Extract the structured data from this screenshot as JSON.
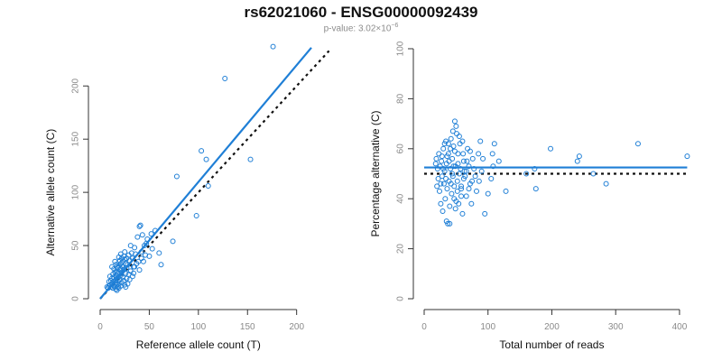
{
  "header": {
    "title": "rs62021060 - ENSG00000092439",
    "subtitle_prefix": "p-value: 3.02×10",
    "subtitle_exponent": "−6"
  },
  "colors": {
    "points": "#1f7fd6",
    "fit_line": "#1f7fd6",
    "reference_line": "#111111",
    "axis": "#333333",
    "tick_text": "#8a8a8a"
  },
  "chart_data": [
    {
      "type": "scatter",
      "title": "",
      "xlabel": "Reference allele count (T)",
      "ylabel": "Alternative allele count (C)",
      "xlim": [
        0,
        215
      ],
      "ylim": [
        0,
        235
      ],
      "xticks": [
        0,
        50,
        100,
        150,
        200
      ],
      "yticks": [
        0,
        50,
        100,
        150,
        200
      ],
      "grid": false,
      "legend": "none",
      "fit_line": {
        "x": [
          0,
          215
        ],
        "y": [
          0,
          236
        ],
        "style": "solid"
      },
      "reference_line": {
        "x": [
          0,
          233
        ],
        "y": [
          0,
          233
        ],
        "style": "dotted"
      },
      "points": [
        [
          176,
          237
        ],
        [
          127,
          207
        ],
        [
          103,
          139
        ],
        [
          108,
          131
        ],
        [
          153,
          131
        ],
        [
          110,
          106
        ],
        [
          78,
          115
        ],
        [
          98,
          78
        ],
        [
          74,
          54
        ],
        [
          62,
          32
        ],
        [
          60,
          43
        ],
        [
          56,
          64
        ],
        [
          52,
          61
        ],
        [
          50,
          40
        ],
        [
          45,
          50
        ],
        [
          43,
          60
        ],
        [
          42,
          38
        ],
        [
          41,
          69
        ],
        [
          40,
          68
        ],
        [
          38,
          58
        ],
        [
          36,
          42
        ],
        [
          35,
          48
        ],
        [
          34,
          30
        ],
        [
          33,
          38
        ],
        [
          32,
          43
        ],
        [
          31,
          50
        ],
        [
          30,
          36
        ],
        [
          29,
          41
        ],
        [
          28,
          32
        ],
        [
          27,
          29
        ],
        [
          27,
          38
        ],
        [
          26,
          24
        ],
        [
          26,
          33
        ],
        [
          25,
          37
        ],
        [
          25,
          44
        ],
        [
          24,
          27
        ],
        [
          24,
          40
        ],
        [
          23,
          20
        ],
        [
          23,
          30
        ],
        [
          23,
          35
        ],
        [
          22,
          15
        ],
        [
          22,
          25
        ],
        [
          22,
          38
        ],
        [
          21,
          12
        ],
        [
          21,
          22
        ],
        [
          21,
          28
        ],
        [
          21,
          33
        ],
        [
          20,
          18
        ],
        [
          20,
          27
        ],
        [
          20,
          36
        ],
        [
          19,
          10
        ],
        [
          19,
          14
        ],
        [
          19,
          21
        ],
        [
          19,
          31
        ],
        [
          18,
          11
        ],
        [
          18,
          17
        ],
        [
          18,
          24
        ],
        [
          18,
          29
        ],
        [
          17,
          8
        ],
        [
          17,
          13
        ],
        [
          17,
          19
        ],
        [
          17,
          26
        ],
        [
          16,
          9
        ],
        [
          16,
          15
        ],
        [
          16,
          22
        ],
        [
          16,
          32
        ],
        [
          15,
          11
        ],
        [
          15,
          17
        ],
        [
          15,
          25
        ],
        [
          15,
          35
        ],
        [
          14,
          12
        ],
        [
          14,
          20
        ],
        [
          14,
          28
        ],
        [
          13,
          10
        ],
        [
          13,
          16
        ],
        [
          13,
          23
        ],
        [
          12,
          14
        ],
        [
          12,
          19
        ],
        [
          12,
          30
        ],
        [
          11,
          11
        ],
        [
          11,
          17
        ],
        [
          10,
          13
        ],
        [
          10,
          21
        ],
        [
          9,
          12
        ],
        [
          9,
          16
        ],
        [
          8,
          10
        ],
        [
          7,
          11
        ],
        [
          26,
          11
        ],
        [
          28,
          14
        ],
        [
          30,
          18
        ],
        [
          31,
          26
        ],
        [
          33,
          21
        ],
        [
          34,
          24
        ],
        [
          35,
          30
        ],
        [
          37,
          33
        ],
        [
          39,
          35
        ],
        [
          40,
          27
        ],
        [
          42,
          44
        ],
        [
          44,
          35
        ],
        [
          46,
          41
        ],
        [
          47,
          52
        ],
        [
          48,
          56
        ],
        [
          53,
          47
        ],
        [
          24,
          17
        ],
        [
          22,
          31
        ],
        [
          27,
          19
        ],
        [
          29,
          23
        ],
        [
          19,
          39
        ],
        [
          21,
          42
        ],
        [
          17,
          30
        ],
        [
          25,
          13
        ]
      ]
    },
    {
      "type": "scatter",
      "title": "",
      "xlabel": "Total number of reads",
      "ylabel": "Percentage alternative (C)",
      "xlim": [
        0,
        410
      ],
      "ylim": [
        0,
        100
      ],
      "xticks": [
        0,
        100,
        200,
        300,
        400
      ],
      "yticks": [
        0,
        20,
        40,
        60,
        80,
        100
      ],
      "grid": false,
      "legend": "none",
      "fit_line": {
        "x": [
          0,
          412
        ],
        "y": [
          52.5,
          52.5
        ],
        "style": "solid"
      },
      "reference_line": {
        "x": [
          0,
          412
        ],
        "y": [
          50,
          50
        ],
        "style": "dotted"
      },
      "points": [
        [
          412,
          57
        ],
        [
          335,
          62
        ],
        [
          285,
          46
        ],
        [
          265,
          50
        ],
        [
          243,
          57
        ],
        [
          240,
          55
        ],
        [
          198,
          60
        ],
        [
          175,
          44
        ],
        [
          173,
          52
        ],
        [
          160,
          50
        ],
        [
          128,
          43
        ],
        [
          110,
          62
        ],
        [
          107,
          58
        ],
        [
          105,
          48
        ],
        [
          100,
          42
        ],
        [
          95,
          34
        ],
        [
          108,
          53
        ],
        [
          117,
          55
        ],
        [
          90,
          51
        ],
        [
          88,
          63
        ],
        [
          85,
          58
        ],
        [
          82,
          43
        ],
        [
          80,
          49
        ],
        [
          78,
          52
        ],
        [
          76,
          56
        ],
        [
          74,
          38
        ],
        [
          72,
          46
        ],
        [
          70,
          53
        ],
        [
          68,
          60
        ],
        [
          66,
          41
        ],
        [
          64,
          49
        ],
        [
          62,
          55
        ],
        [
          60,
          34
        ],
        [
          58,
          44
        ],
        [
          56,
          62
        ],
        [
          55,
          50
        ],
        [
          53,
          58
        ],
        [
          52,
          47
        ],
        [
          51,
          66
        ],
        [
          50,
          39
        ],
        [
          49,
          53
        ],
        [
          48,
          71
        ],
        [
          47,
          45
        ],
        [
          46,
          61
        ],
        [
          45,
          49
        ],
        [
          44,
          56
        ],
        [
          43,
          42
        ],
        [
          42,
          64
        ],
        [
          41,
          52
        ],
        [
          40,
          37
        ],
        [
          39,
          47
        ],
        [
          38,
          58
        ],
        [
          37,
          30
        ],
        [
          36,
          44
        ],
        [
          35,
          54
        ],
        [
          34,
          63
        ],
        [
          33,
          40
        ],
        [
          32,
          51
        ],
        [
          31,
          46
        ],
        [
          30,
          60
        ],
        [
          29,
          35
        ],
        [
          28,
          49
        ],
        [
          27,
          55
        ],
        [
          26,
          38
        ],
        [
          25,
          53
        ],
        [
          24,
          43
        ],
        [
          23,
          58
        ],
        [
          22,
          48
        ],
        [
          21,
          52
        ],
        [
          20,
          45
        ],
        [
          19,
          56
        ],
        [
          18,
          54
        ],
        [
          35,
          31
        ],
        [
          40,
          30
        ],
        [
          45,
          67
        ],
        [
          50,
          69
        ],
        [
          55,
          65
        ],
        [
          38,
          62
        ],
        [
          42,
          46
        ],
        [
          47,
          40
        ],
        [
          52,
          43
        ],
        [
          57,
          52
        ],
        [
          62,
          48
        ],
        [
          67,
          55
        ],
        [
          72,
          59
        ],
        [
          58,
          45
        ],
        [
          63,
          51
        ],
        [
          44,
          50
        ],
        [
          36,
          57
        ],
        [
          30,
          52
        ],
        [
          48,
          59
        ],
        [
          54,
          38
        ],
        [
          70,
          44
        ],
        [
          86,
          47
        ],
        [
          92,
          56
        ],
        [
          60,
          63
        ],
        [
          34,
          48
        ],
        [
          28,
          57
        ],
        [
          39,
          55
        ],
        [
          46,
          53
        ],
        [
          53,
          54
        ],
        [
          61,
          58
        ],
        [
          66,
          51
        ],
        [
          75,
          47
        ],
        [
          26,
          46
        ],
        [
          32,
          62
        ],
        [
          41,
          60
        ],
        [
          49,
          36
        ],
        [
          58,
          41
        ]
      ]
    }
  ]
}
